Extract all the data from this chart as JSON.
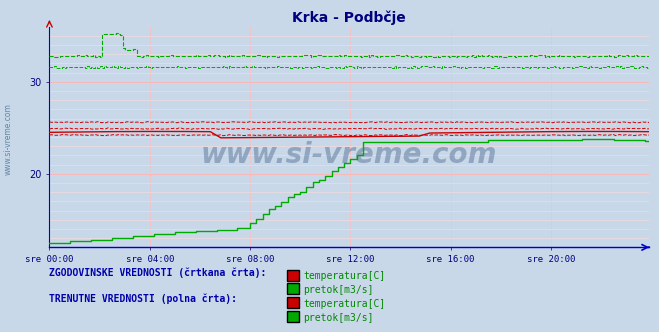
{
  "title": "Krka - Podbčje",
  "title_color": "#000080",
  "bg_color": "#c8d8e8",
  "plot_bg_color": "#c8d8e8",
  "axis_color": "#0000cc",
  "tick_color": "#000080",
  "xlim": [
    0,
    287
  ],
  "ylim": [
    12,
    36
  ],
  "yticks": [
    20,
    30
  ],
  "xtick_labels": [
    "sre 00:00",
    "sre 04:00",
    "sre 08:00",
    "sre 12:00",
    "sre 16:00",
    "sre 20:00"
  ],
  "xtick_positions": [
    0,
    48,
    96,
    144,
    192,
    240
  ],
  "watermark": "www.si-vreme.com",
  "watermark_color": "#1a3a6a",
  "sidebar_text": "www.si-vreme.com",
  "legend_text1": "ZGODOVINSKE VREDNOSTI (črtkana črta):",
  "legend_text2": "TRENUTNE VREDNOSTI (polna črta):",
  "legend_label1a": "temperatura[C]",
  "legend_label1b": "pretok[m3/s]",
  "legend_label2a": "temperatura[C]",
  "legend_label2b": "pretok[m3/s]",
  "temp_color": "#cc0000",
  "flow_color": "#00aa00",
  "n_points": 288,
  "figsize": [
    6.59,
    3.32
  ],
  "dpi": 100
}
